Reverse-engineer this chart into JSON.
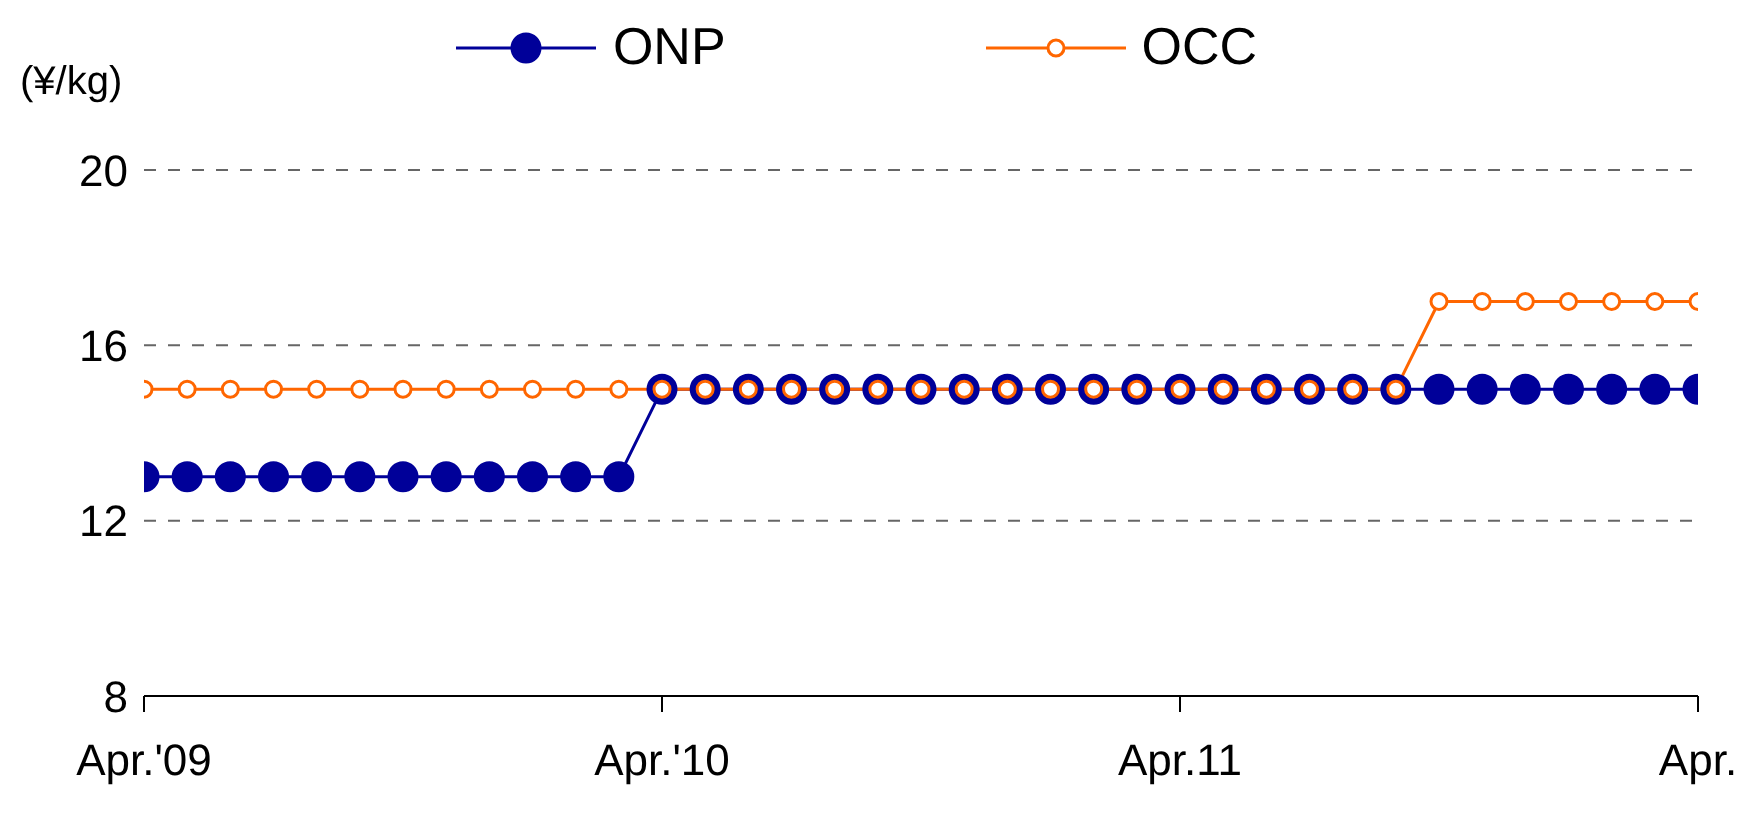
{
  "chart_data": {
    "type": "line",
    "ylabel": "(¥/kg)",
    "categories": [
      "Apr.'09",
      null,
      null,
      null,
      null,
      null,
      null,
      null,
      null,
      null,
      null,
      null,
      "Apr.'10",
      null,
      null,
      null,
      null,
      null,
      null,
      null,
      null,
      null,
      null,
      null,
      "Apr.11",
      null,
      null,
      null,
      null,
      null,
      null,
      null,
      null,
      null,
      null,
      null,
      "Apr."
    ],
    "series": [
      {
        "name": "ONP",
        "color": "#000099",
        "marker": "circle",
        "values": [
          13,
          13,
          13,
          13,
          13,
          13,
          13,
          13,
          13,
          13,
          13,
          13,
          15,
          15,
          15,
          15,
          15,
          15,
          15,
          15,
          15,
          15,
          15,
          15,
          15,
          15,
          15,
          15,
          15,
          15,
          15,
          15,
          15,
          15,
          15,
          15,
          15
        ]
      },
      {
        "name": "OCC",
        "color": "#ff6600",
        "marker": "circle",
        "values": [
          15,
          15,
          15,
          15,
          15,
          15,
          15,
          15,
          15,
          15,
          15,
          15,
          15,
          15,
          15,
          15,
          15,
          15,
          15,
          15,
          15,
          15,
          15,
          15,
          15,
          15,
          15,
          15,
          15,
          15,
          17,
          17,
          17,
          17,
          17,
          17,
          17
        ]
      }
    ],
    "ylim": [
      8,
      20
    ],
    "yticks": [
      8,
      12,
      16,
      20
    ],
    "grid": "y",
    "legend": "top",
    "line_style": "solid"
  }
}
